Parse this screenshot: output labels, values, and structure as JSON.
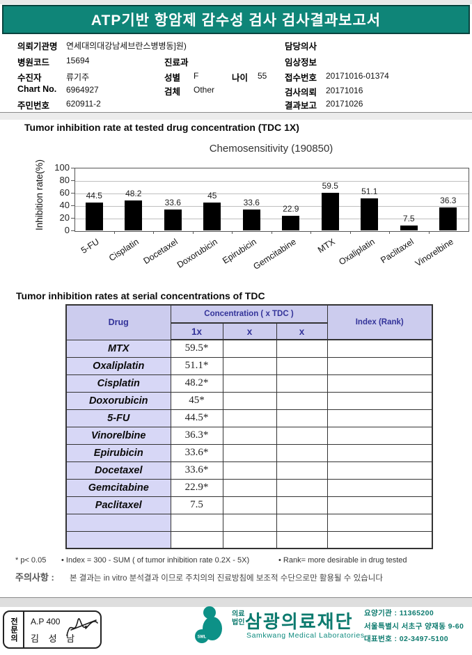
{
  "page": {
    "title": "ATP기반 항암제 감수성 검사 검사결과보고서"
  },
  "patient": {
    "left": [
      {
        "label": "의뢰기관명",
        "value": "연세대의대강남세브란스병병동]원)"
      },
      {
        "label": "병원코드",
        "value": "15694"
      },
      {
        "label": "수진자",
        "value": "류기주"
      },
      {
        "label": "Chart No.",
        "value": "6964927"
      },
      {
        "label": "주민번호",
        "value": "620911-2"
      }
    ],
    "middle": [
      {
        "label": "진료과",
        "value": ""
      },
      {
        "label": "성별",
        "value": "F"
      },
      {
        "label": "나이",
        "value": "55"
      },
      {
        "label": "검체",
        "value": "Other"
      }
    ],
    "right": [
      {
        "label": "담당의사",
        "value": ""
      },
      {
        "label": "임상정보",
        "value": ""
      },
      {
        "label": "접수번호",
        "value": "20171016-01374"
      },
      {
        "label": "검사의뢰",
        "value": "20171016"
      },
      {
        "label": "결과보고",
        "value": "20171026"
      }
    ]
  },
  "section1": {
    "title": "Tumor inhibition rate at tested drug concentration (TDC 1X)"
  },
  "chart_data": {
    "type": "bar",
    "title": "Chemosensitivity (190850)",
    "ylabel": "Inhibition rate(%)",
    "categories": [
      "5-FU",
      "Cisplatin",
      "Docetaxel",
      "Doxorubicin",
      "Epirubicin",
      "Gemcitabine",
      "MTX",
      "Oxaliplatin",
      "Paclitaxel",
      "Vinorelbine"
    ],
    "values": [
      44.5,
      48.2,
      33.6,
      45,
      33.6,
      22.9,
      59.5,
      51.1,
      7.5,
      36.3
    ],
    "value_labels": [
      "44.5",
      "48.2",
      "33.6",
      "45",
      "33.6",
      "22.9",
      "59.5",
      "51.1",
      "7.5",
      "36.3"
    ],
    "yticks": [
      0,
      20,
      40,
      60,
      80,
      100
    ],
    "ylim": [
      0,
      100
    ],
    "grid": true,
    "legend": "none",
    "bar_color": "#000000"
  },
  "section2": {
    "title": "Tumor inhibition rates at serial concentrations of TDC"
  },
  "table": {
    "header": {
      "drug": "Drug",
      "concentration": "Concentration ( x TDC )",
      "sub": [
        "1x",
        "x",
        "x"
      ],
      "index": "Index (Rank)"
    },
    "rows": [
      {
        "drug": "MTX",
        "c1": "59.5*",
        "c2": "",
        "c3": "",
        "index": ""
      },
      {
        "drug": "Oxaliplatin",
        "c1": "51.1*",
        "c2": "",
        "c3": "",
        "index": ""
      },
      {
        "drug": "Cisplatin",
        "c1": "48.2*",
        "c2": "",
        "c3": "",
        "index": ""
      },
      {
        "drug": "Doxorubicin",
        "c1": "45*",
        "c2": "",
        "c3": "",
        "index": ""
      },
      {
        "drug": "5-FU",
        "c1": "44.5*",
        "c2": "",
        "c3": "",
        "index": ""
      },
      {
        "drug": "Vinorelbine",
        "c1": "36.3*",
        "c2": "",
        "c3": "",
        "index": ""
      },
      {
        "drug": "Epirubicin",
        "c1": "33.6*",
        "c2": "",
        "c3": "",
        "index": ""
      },
      {
        "drug": "Docetaxel",
        "c1": "33.6*",
        "c2": "",
        "c3": "",
        "index": ""
      },
      {
        "drug": "Gemcitabine",
        "c1": "22.9*",
        "c2": "",
        "c3": "",
        "index": ""
      },
      {
        "drug": "Paclitaxel",
        "c1": "7.5",
        "c2": "",
        "c3": "",
        "index": ""
      },
      {
        "drug": "",
        "c1": "",
        "c2": "",
        "c3": "",
        "index": ""
      },
      {
        "drug": "",
        "c1": "",
        "c2": "",
        "c3": "",
        "index": ""
      }
    ]
  },
  "notes": {
    "p_note": "* p< 0.05",
    "index_note": "• Index = 300 - SUM ( of tumor inhibition rate 0.2X  -  5X)",
    "rank_note": "• Rank= more desirable in drug tested",
    "caution_label": "주의사항 :",
    "caution_text": "본 결과는 in vitro 분석결과 이므로 주치의의 진료방침에 보조적 수단으로만 활용될 수 있습니다"
  },
  "footer": {
    "stamp": {
      "vertical_label": "전문의",
      "line1": "A.P 400",
      "line2": "김 성 남"
    },
    "org": {
      "type_line1": "의료",
      "type_line2": "법인",
      "name": "삼광의료재단",
      "name_en": "Samkwang Medical Laboratories",
      "logo_text": "SML"
    },
    "contact": {
      "line1": "요양기관 : 11365200",
      "line2": "서울특별시 서초구 양재동 9-60",
      "line3": "대표번호 : 02-3497-5100"
    }
  },
  "colors": {
    "header_bg": "#0f8578",
    "header_border": "#0a433e",
    "table_header_bg": "#ccccee",
    "drug_cell_bg": "#d7d7f6",
    "table_header_text": "#333399",
    "brand_teal": "#0c7a6e",
    "bar_color": "#000000"
  }
}
